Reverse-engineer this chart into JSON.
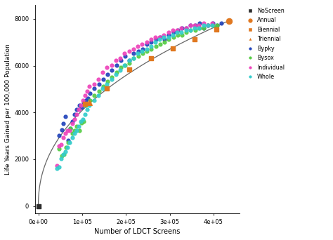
{
  "title": "",
  "xlabel": "Number of LDCT Screens",
  "ylabel": "Life Years Gained per 100,000 Population",
  "xlim": [
    -8000,
    460000
  ],
  "ylim": [
    -300,
    8600
  ],
  "background_color": "#ffffff",
  "curve_color": "#666666",
  "curve_A": 10000,
  "curve_b": 0.42,
  "legend": {
    "NoScreen": {
      "color": "#2d2d2d",
      "marker": "s"
    },
    "Annual": {
      "color": "#e07820",
      "marker": "o"
    },
    "Biennial": {
      "color": "#e07820",
      "marker": "s"
    },
    "Triennial": {
      "color": "#e07820",
      "marker": "^"
    },
    "Bypky": {
      "color": "#2244bb",
      "marker": "o"
    },
    "Bysox": {
      "color": "#55cc44",
      "marker": "o"
    },
    "Individual": {
      "color": "#ee44bb",
      "marker": "o"
    },
    "Whole": {
      "color": "#33cccc",
      "marker": "o"
    }
  },
  "noscreen_point": [
    0,
    0
  ],
  "annual_point": [
    435000,
    7920
  ],
  "biennial_points": [
    [
      107000,
      4370
    ],
    [
      157000,
      5020
    ],
    [
      207000,
      5830
    ],
    [
      257000,
      6320
    ],
    [
      307000,
      6730
    ],
    [
      357000,
      7120
    ],
    [
      407000,
      7560
    ]
  ],
  "triennial_points": [
    [
      117000,
      4430
    ]
  ],
  "bypky_points": [
    [
      48000,
      3020
    ],
    [
      53000,
      3270
    ],
    [
      57000,
      3520
    ],
    [
      62000,
      3820
    ],
    [
      68000,
      2820
    ],
    [
      73000,
      3320
    ],
    [
      78000,
      3620
    ],
    [
      83000,
      3920
    ],
    [
      88000,
      4120
    ],
    [
      93000,
      4320
    ],
    [
      98000,
      4220
    ],
    [
      103000,
      4420
    ],
    [
      108000,
      4520
    ],
    [
      113000,
      4620
    ],
    [
      118000,
      4820
    ],
    [
      128000,
      5020
    ],
    [
      138000,
      5220
    ],
    [
      148000,
      5420
    ],
    [
      158000,
      5620
    ],
    [
      168000,
      5820
    ],
    [
      178000,
      6020
    ],
    [
      188000,
      6220
    ],
    [
      198000,
      6420
    ],
    [
      208000,
      6220
    ],
    [
      218000,
      6520
    ],
    [
      228000,
      6620
    ],
    [
      238000,
      6720
    ],
    [
      248000,
      6920
    ],
    [
      258000,
      7020
    ],
    [
      268000,
      7120
    ],
    [
      278000,
      7220
    ],
    [
      288000,
      7120
    ],
    [
      298000,
      7320
    ],
    [
      308000,
      7420
    ],
    [
      318000,
      7520
    ],
    [
      328000,
      7620
    ],
    [
      338000,
      7620
    ],
    [
      348000,
      7720
    ],
    [
      358000,
      7720
    ],
    [
      368000,
      7820
    ],
    [
      378000,
      7620
    ],
    [
      388000,
      7720
    ],
    [
      398000,
      7820
    ],
    [
      408000,
      7720
    ],
    [
      418000,
      7820
    ]
  ],
  "bysox_points": [
    [
      48000,
      2450
    ],
    [
      53000,
      2150
    ],
    [
      58000,
      2220
    ],
    [
      63000,
      2520
    ],
    [
      68000,
      2720
    ],
    [
      73000,
      3320
    ],
    [
      78000,
      3120
    ],
    [
      83000,
      3220
    ],
    [
      88000,
      3420
    ],
    [
      93000,
      3220
    ],
    [
      98000,
      3570
    ],
    [
      103000,
      3620
    ],
    [
      108000,
      4320
    ],
    [
      118000,
      4520
    ],
    [
      128000,
      4720
    ],
    [
      138000,
      4920
    ],
    [
      148000,
      5120
    ],
    [
      158000,
      5320
    ],
    [
      168000,
      5520
    ],
    [
      178000,
      5720
    ],
    [
      188000,
      5920
    ],
    [
      198000,
      6020
    ],
    [
      208000,
      6120
    ],
    [
      218000,
      6320
    ],
    [
      228000,
      6420
    ],
    [
      238000,
      6520
    ],
    [
      248000,
      6620
    ],
    [
      258000,
      6720
    ],
    [
      268000,
      6820
    ],
    [
      278000,
      6920
    ],
    [
      288000,
      7020
    ],
    [
      298000,
      7120
    ],
    [
      308000,
      7220
    ],
    [
      318000,
      7320
    ],
    [
      328000,
      7320
    ],
    [
      338000,
      7420
    ],
    [
      348000,
      7520
    ],
    [
      358000,
      7520
    ],
    [
      368000,
      7620
    ],
    [
      378000,
      7620
    ],
    [
      388000,
      7720
    ],
    [
      398000,
      7720
    ],
    [
      408000,
      7720
    ]
  ],
  "individual_points": [
    [
      42000,
      1720
    ],
    [
      47000,
      2570
    ],
    [
      52000,
      2620
    ],
    [
      57000,
      2920
    ],
    [
      62000,
      3120
    ],
    [
      67000,
      3220
    ],
    [
      72000,
      3220
    ],
    [
      77000,
      3520
    ],
    [
      82000,
      3720
    ],
    [
      87000,
      3920
    ],
    [
      92000,
      4120
    ],
    [
      97000,
      4320
    ],
    [
      102000,
      4520
    ],
    [
      107000,
      4720
    ],
    [
      112000,
      4920
    ],
    [
      117000,
      5120
    ],
    [
      127000,
      5220
    ],
    [
      137000,
      5420
    ],
    [
      147000,
      5720
    ],
    [
      157000,
      5920
    ],
    [
      167000,
      6020
    ],
    [
      177000,
      6220
    ],
    [
      187000,
      6320
    ],
    [
      197000,
      6520
    ],
    [
      207000,
      6620
    ],
    [
      217000,
      6720
    ],
    [
      227000,
      6820
    ],
    [
      237000,
      6920
    ],
    [
      247000,
      7020
    ],
    [
      257000,
      7120
    ],
    [
      267000,
      7220
    ],
    [
      277000,
      7220
    ],
    [
      287000,
      7320
    ],
    [
      297000,
      7420
    ],
    [
      307000,
      7520
    ],
    [
      317000,
      7520
    ],
    [
      327000,
      7620
    ],
    [
      337000,
      7620
    ],
    [
      347000,
      7720
    ],
    [
      357000,
      7720
    ],
    [
      367000,
      7720
    ],
    [
      377000,
      7820
    ],
    [
      387000,
      7720
    ],
    [
      397000,
      7820
    ]
  ],
  "whole_points": [
    [
      42000,
      1620
    ],
    [
      47000,
      1670
    ],
    [
      52000,
      2020
    ],
    [
      57000,
      2220
    ],
    [
      62000,
      2320
    ],
    [
      67000,
      2520
    ],
    [
      72000,
      2720
    ],
    [
      77000,
      2920
    ],
    [
      82000,
      3120
    ],
    [
      87000,
      3220
    ],
    [
      92000,
      3420
    ],
    [
      97000,
      3620
    ],
    [
      102000,
      3720
    ],
    [
      107000,
      3920
    ],
    [
      112000,
      4120
    ],
    [
      117000,
      4320
    ],
    [
      127000,
      4520
    ],
    [
      137000,
      4720
    ],
    [
      147000,
      5020
    ],
    [
      157000,
      5220
    ],
    [
      167000,
      5420
    ],
    [
      177000,
      5620
    ],
    [
      187000,
      5820
    ],
    [
      197000,
      6020
    ],
    [
      207000,
      6220
    ],
    [
      217000,
      6320
    ],
    [
      227000,
      6520
    ],
    [
      237000,
      6620
    ],
    [
      247000,
      6720
    ],
    [
      257000,
      6820
    ],
    [
      267000,
      7020
    ],
    [
      277000,
      7120
    ],
    [
      287000,
      7220
    ],
    [
      297000,
      7220
    ],
    [
      307000,
      7320
    ],
    [
      317000,
      7420
    ],
    [
      327000,
      7420
    ],
    [
      337000,
      7520
    ],
    [
      347000,
      7520
    ],
    [
      357000,
      7620
    ],
    [
      367000,
      7620
    ],
    [
      377000,
      7720
    ],
    [
      387000,
      7720
    ],
    [
      397000,
      7720
    ]
  ]
}
